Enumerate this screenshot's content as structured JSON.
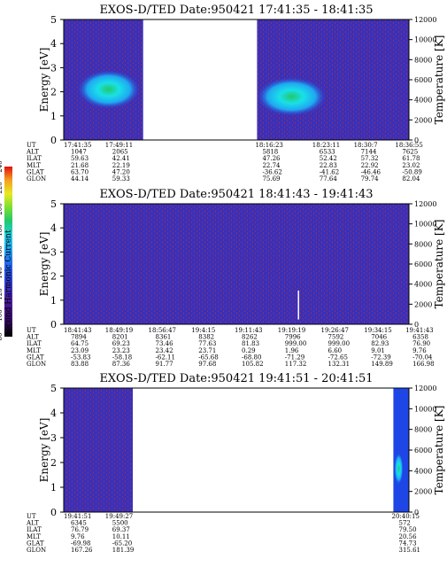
{
  "colors": {
    "background": "#3a2fb8",
    "stripe": "#b8323c",
    "cyan": "#19e0e8",
    "green": "#22c86a",
    "blue": "#1e46e6",
    "white": "#ffffff",
    "cbar": [
      "#000000",
      "#3a0b6b",
      "#4a1ca0",
      "#2a3fd8",
      "#1f6ef0",
      "#1fa8f0",
      "#20d0e0",
      "#22c86a",
      "#7ae030",
      "#e8e820",
      "#f4a020",
      "#f03010",
      "#e01010"
    ]
  },
  "colorbar": {
    "label": "Second Harmonic Current",
    "ticks": [
      "80",
      "100",
      "120",
      "140",
      "160",
      "180",
      "200",
      "220",
      "240"
    ]
  },
  "chart_data": [
    {
      "type": "heatmap",
      "title": "EXOS-D/TED   Date:950421   17:41:35 - 18:41:35",
      "ylabel": "Energy [eV]",
      "ylabel_right": "Temperature [K]",
      "ylim": [
        0,
        5
      ],
      "ylim_right": [
        0,
        12000
      ],
      "yticks": [
        "0",
        "1",
        "2",
        "3",
        "4",
        "5"
      ],
      "yticks_right": [
        "0",
        "2000",
        "4000",
        "6000",
        "8000",
        "10000",
        "12000"
      ],
      "data_gap": [
        0.23,
        0.56
      ],
      "blobs": [
        {
          "x0": 0.04,
          "x1": 0.22,
          "y0": 1.3,
          "y1": 2.9,
          "peak": [
            0.12,
            2.1
          ],
          "level": "high"
        },
        {
          "x0": 0.56,
          "x1": 0.76,
          "y0": 1.0,
          "y1": 2.6,
          "peak": [
            0.6,
            1.9
          ],
          "level": "high"
        }
      ],
      "orbit_labels": [
        "UT",
        "ALT",
        "ILAT",
        "MLT",
        "GLAT",
        "GLON"
      ],
      "orbit_columns": [
        {
          "x": 0.0,
          "values": [
            "17:41:35",
            "1047",
            "59.63",
            "21.68",
            "63.70",
            "44.14"
          ]
        },
        {
          "x": 0.12,
          "values": [
            "17:49:11",
            "2065",
            "42.41",
            "22.19",
            "47.20",
            "59.33"
          ]
        },
        {
          "x": 0.555,
          "values": [
            "18:16:23",
            "5818",
            "47.26",
            "22.74",
            "-36.62",
            "75.69"
          ]
        },
        {
          "x": 0.72,
          "values": [
            "18:23:11",
            "6533",
            "52.42",
            "22.83",
            "-41.62",
            "77.64"
          ]
        },
        {
          "x": 0.84,
          "values": [
            "18:30:7",
            "7144",
            "57.32",
            "22.92",
            "-46.46",
            "79.74"
          ]
        },
        {
          "x": 0.96,
          "values": [
            "18:36:55",
            "7625",
            "61.78",
            "23.02",
            "-50.89",
            "82.04"
          ]
        }
      ]
    },
    {
      "type": "heatmap",
      "title": "EXOS-D/TED   Date:950421   18:41:43 - 19:41:43",
      "ylabel": "Energy [eV]",
      "ylabel_right": "Temperature [K]",
      "ylim": [
        0,
        5
      ],
      "ylim_right": [
        0,
        12000
      ],
      "yticks": [
        "0",
        "1",
        "2",
        "3",
        "4",
        "5"
      ],
      "yticks_right": [
        "0",
        "2000",
        "4000",
        "6000",
        "8000",
        "10000",
        "12000"
      ],
      "orbit_labels": [
        "UT",
        "ALT",
        "ILAT",
        "MLT",
        "GLAT",
        "GLON"
      ],
      "orbit_columns": [
        {
          "x": 0.0,
          "values": [
            "18:41:43",
            "7894",
            "64.75",
            "23.09",
            "-53.83",
            "83.88"
          ]
        },
        {
          "x": 0.12,
          "values": [
            "18:49:19",
            "8201",
            "69.23",
            "23.23",
            "-58.18",
            "87.36"
          ]
        },
        {
          "x": 0.245,
          "values": [
            "18:56:47",
            "8361",
            "73.46",
            "23.42",
            "-62.11",
            "91.77"
          ]
        },
        {
          "x": 0.37,
          "values": [
            "19:4:15",
            "8382",
            "77.63",
            "23.71",
            "-65.68",
            "97.68"
          ]
        },
        {
          "x": 0.495,
          "values": [
            "19:11:43",
            "8262",
            "81.83",
            "0.29",
            "-68.80",
            "105.82"
          ]
        },
        {
          "x": 0.62,
          "values": [
            "19:19:19",
            "7996",
            "999.00",
            "1.96",
            "-71.29",
            "117.32"
          ]
        },
        {
          "x": 0.745,
          "values": [
            "19:26:47",
            "7592",
            "999.00",
            "6.60",
            "-72.65",
            "132.31"
          ]
        },
        {
          "x": 0.87,
          "values": [
            "19:34:15",
            "7046",
            "82.93",
            "9.01",
            "-72.39",
            "149.89"
          ]
        },
        {
          "x": 0.99,
          "values": [
            "19:41:43",
            "6358",
            "76.90",
            "9.76",
            "-70.04",
            "166.98"
          ]
        }
      ]
    },
    {
      "type": "heatmap",
      "title": "EXOS-D/TED   Date:950421   19:41:51 - 20:41:51",
      "ylabel": "Energy [eV]",
      "ylabel_right": "Temperature [K]",
      "ylim": [
        0,
        5
      ],
      "ylim_right": [
        0,
        12000
      ],
      "yticks": [
        "0",
        "1",
        "2",
        "3",
        "4",
        "5"
      ],
      "yticks_right": [
        "0",
        "2000",
        "4000",
        "6000",
        "8000",
        "10000",
        "12000"
      ],
      "data_gap": [
        0.2,
        0.955
      ],
      "orbit_labels": [
        "UT",
        "ALT",
        "ILAT",
        "MLT",
        "GLAT",
        "GLON"
      ],
      "orbit_columns": [
        {
          "x": 0.0,
          "values": [
            "19:41:51",
            "6345",
            "76.79",
            "9.76",
            "-69.98",
            "167.26"
          ]
        },
        {
          "x": 0.12,
          "values": [
            "19:49:27",
            "5500",
            "69.37",
            "10.11",
            "-65.20",
            "181.39"
          ]
        },
        {
          "x": 0.95,
          "values": [
            "20:40:15",
            "572",
            "79.50",
            "20.56",
            "74.73",
            "315.61"
          ]
        }
      ]
    }
  ]
}
